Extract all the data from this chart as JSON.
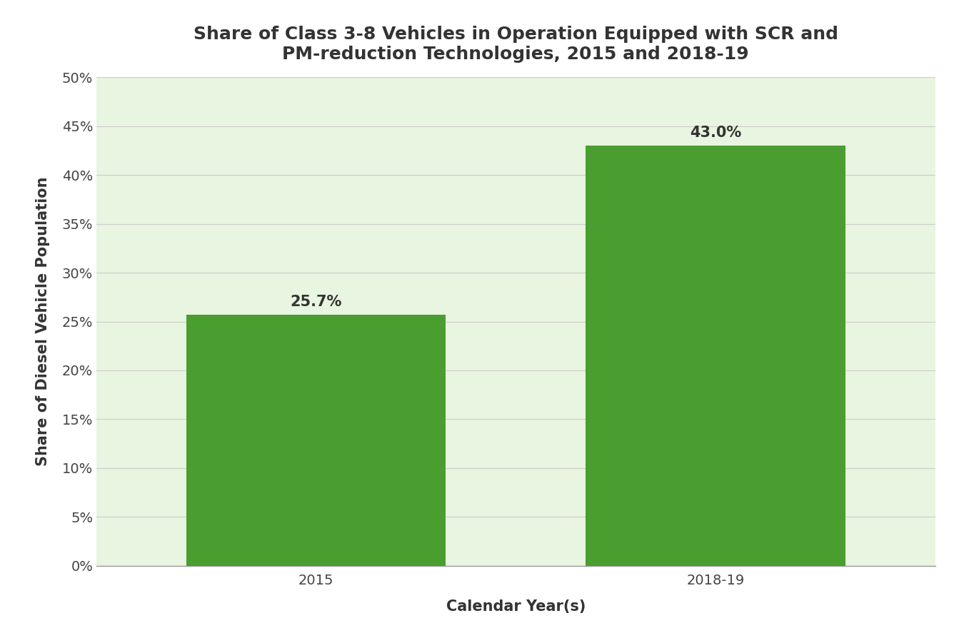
{
  "title": "Share of Class 3-8 Vehicles in Operation Equipped with SCR and\nPM-reduction Technologies, 2015 and 2018-19",
  "categories": [
    "2015",
    "2018-19"
  ],
  "values": [
    25.7,
    43.0
  ],
  "bar_color": "#4a9e2f",
  "plot_bg_color": "#e8f5e0",
  "fig_bg_color": "#ffffff",
  "ylabel": "Share of Diesel Vehicle Population",
  "xlabel": "Calendar Year(s)",
  "ylim": [
    0,
    50
  ],
  "yticks": [
    0,
    5,
    10,
    15,
    20,
    25,
    30,
    35,
    40,
    45,
    50
  ],
  "ytick_labels": [
    "0%",
    "5%",
    "10%",
    "15%",
    "20%",
    "25%",
    "30%",
    "35%",
    "40%",
    "45%",
    "50%"
  ],
  "title_fontsize": 18,
  "label_fontsize": 15,
  "tick_fontsize": 14,
  "annotation_fontsize": 15,
  "grid_color": "#cccccc",
  "bar_width": 0.65
}
